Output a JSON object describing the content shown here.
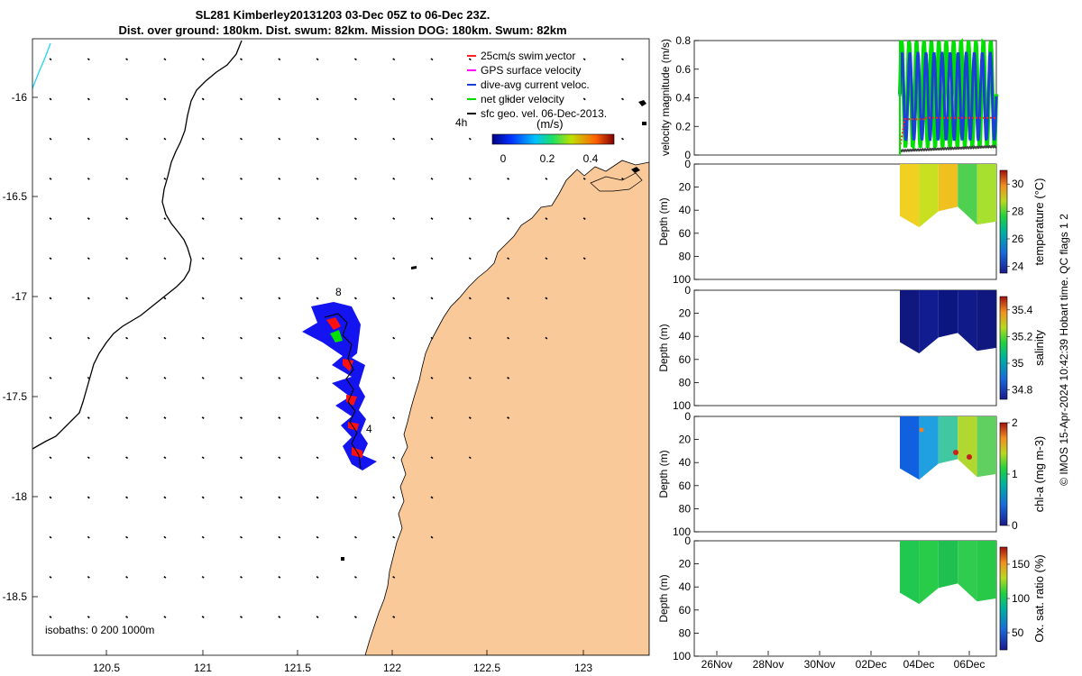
{
  "title": {
    "line1": "SL281 Kimberley20131203 03-Dec 05Z to 06-Dec 23Z.",
    "line2": "Dist. over ground: 180km. Dist. swum: 82km. Mission DOG: 180km. Swum: 82km"
  },
  "colors": {
    "land": "#f9c99a",
    "swim_vector": "#ff2020",
    "gps_velocity": "#ff00ff",
    "dive_current": "#1c3fd8",
    "net_velocity": "#00e000",
    "sfc_geo": "#000000",
    "track_fill_blue": "#1414f0",
    "track_red": "#ff1010",
    "shore_cyan": "#20d8e8"
  },
  "map": {
    "x_ticks": [
      "120.5",
      "121",
      "121.5",
      "122",
      "122.5",
      "123"
    ],
    "y_ticks": [
      "-16",
      "-16.5",
      "-17",
      "-17.5",
      "-18",
      "-18.5"
    ],
    "isobaths_label": "isobaths: 0   200  1000m",
    "marker_labels": [
      "8",
      "4",
      "4h"
    ],
    "legend": [
      {
        "label": "25cm/s swim vector",
        "color": "#ff2020"
      },
      {
        "label": "GPS surface velocity",
        "color": "#ff00ff"
      },
      {
        "label": "dive-avg current veloc.",
        "color": "#1c3fd8"
      },
      {
        "label": "net glider velocity",
        "color": "#00e000"
      },
      {
        "label": "sfc geo. vel. 06-Dec-2013.",
        "color": "#000000"
      }
    ],
    "colorbar": {
      "label": "(m/s)",
      "ticks": [
        "0",
        "0.2",
        "0.4"
      ]
    }
  },
  "chart_data": [
    {
      "type": "line",
      "ylabel": "velocity magnitude (m/s)",
      "ylim": [
        0,
        0.8
      ],
      "y_ticks": [
        "0",
        "0.2",
        "0.4",
        "0.6",
        "0.8"
      ],
      "x_ticks": [
        "26Nov",
        "28Nov",
        "30Nov",
        "02Dec",
        "04Dec",
        "06Dec"
      ],
      "series": [
        {
          "name": "net glider velocity",
          "color": "#00e000",
          "low": 0.05,
          "high": 0.8
        },
        {
          "name": "dive-avg current veloc.",
          "color": "#1c3fd8",
          "low": 0.1,
          "high": 0.72
        },
        {
          "name": "25cm/s swim vector",
          "color": "#ff2020",
          "value": 0.25
        },
        {
          "name": "sfc geo. vel. 06-Dec-2013.",
          "color": "#404040",
          "low": 0.03,
          "high": 0.06
        }
      ]
    },
    {
      "type": "heatmap",
      "ylabel": "Depth (m)",
      "y_ticks": [
        "0",
        "20",
        "40",
        "60",
        "80",
        "100"
      ],
      "colorbar_label": "temperature (°C)",
      "colorbar_ticks": [
        "24",
        "26",
        "28",
        "30"
      ],
      "clim": [
        23.5,
        31
      ]
    },
    {
      "type": "heatmap",
      "ylabel": "Depth (m)",
      "y_ticks": [
        "0",
        "20",
        "40",
        "60",
        "80",
        "100"
      ],
      "colorbar_label": "salinity",
      "colorbar_ticks": [
        "34.8",
        "35",
        "35.2",
        "35.4"
      ],
      "clim": [
        34.73,
        35.5
      ]
    },
    {
      "type": "heatmap",
      "ylabel": "Depth (m)",
      "y_ticks": [
        "0",
        "20",
        "40",
        "60",
        "80",
        "100"
      ],
      "colorbar_label": "chl-a (mg m-3)",
      "colorbar_ticks": [
        "0",
        "1",
        "2"
      ],
      "clim": [
        0,
        2
      ]
    },
    {
      "type": "heatmap",
      "ylabel": "Depth (m)",
      "y_ticks": [
        "0",
        "20",
        "40",
        "60",
        "80",
        "100"
      ],
      "colorbar_label": "Ox. sat. ratio (%)",
      "colorbar_ticks": [
        "50",
        "100",
        "150"
      ],
      "clim": [
        25,
        175
      ]
    }
  ],
  "side_note": "© IMOS 15-Apr-2024 10:42:39 Hobart time. QC flags 1  2"
}
